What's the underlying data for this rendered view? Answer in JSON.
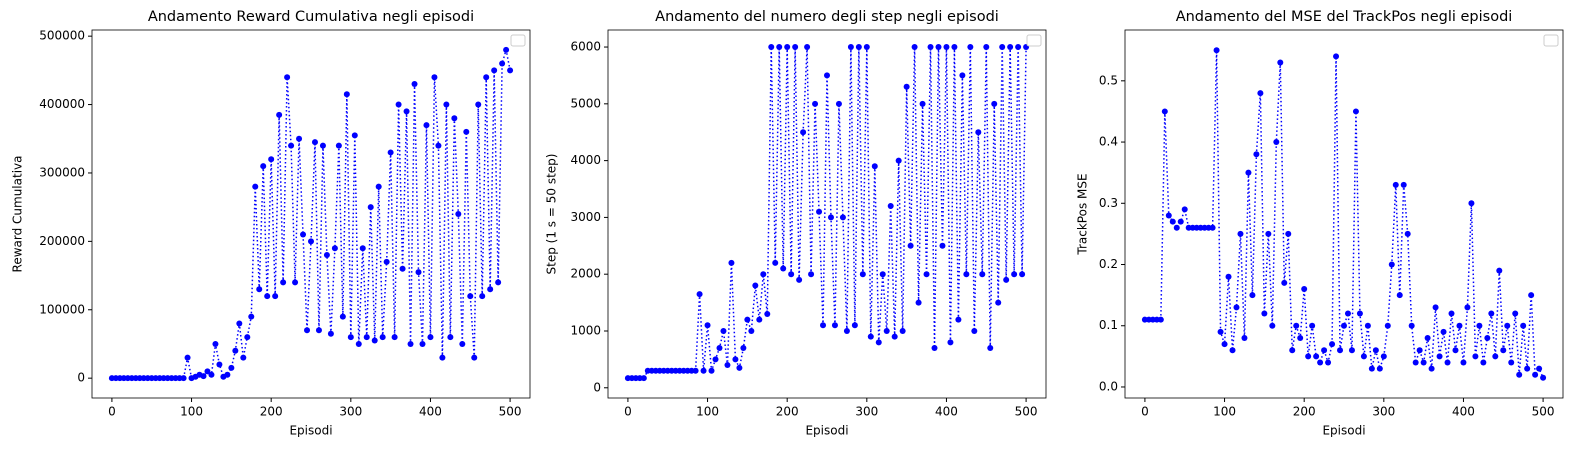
{
  "chart_data": [
    {
      "type": "line",
      "title": "Andamento Reward Cumulativa negli episodi",
      "x_label": "Episodi",
      "y_label": "Reward Cumulativa",
      "x": [
        0,
        5,
        10,
        15,
        20,
        25,
        30,
        35,
        40,
        45,
        50,
        55,
        60,
        65,
        70,
        75,
        80,
        85,
        90,
        95,
        100,
        105,
        110,
        115,
        120,
        125,
        130,
        135,
        140,
        145,
        150,
        155,
        160,
        165,
        170,
        175,
        180,
        185,
        190,
        195,
        200,
        205,
        210,
        215,
        220,
        225,
        230,
        235,
        240,
        245,
        250,
        255,
        260,
        265,
        270,
        275,
        280,
        285,
        290,
        295,
        300,
        305,
        310,
        315,
        320,
        325,
        330,
        335,
        340,
        345,
        350,
        355,
        360,
        365,
        370,
        375,
        380,
        385,
        390,
        395,
        400,
        405,
        410,
        415,
        420,
        425,
        430,
        435,
        440,
        445,
        450,
        455,
        460,
        465,
        470,
        475,
        480,
        485,
        490,
        495,
        500
      ],
      "series": [
        {
          "color": "#0000ff",
          "values": [
            0,
            0,
            0,
            0,
            0,
            0,
            0,
            0,
            0,
            0,
            0,
            0,
            0,
            0,
            0,
            0,
            0,
            0,
            0,
            30000,
            0,
            2000,
            5000,
            3000,
            10000,
            5000,
            50000,
            20000,
            2000,
            5000,
            15000,
            40000,
            80000,
            30000,
            60000,
            90000,
            280000,
            130000,
            310000,
            120000,
            320000,
            120000,
            385000,
            140000,
            440000,
            340000,
            140000,
            350000,
            210000,
            70000,
            200000,
            345000,
            70000,
            340000,
            180000,
            65000,
            190000,
            340000,
            90000,
            415000,
            60000,
            355000,
            50000,
            190000,
            60000,
            250000,
            55000,
            280000,
            60000,
            170000,
            330000,
            60000,
            400000,
            160000,
            390000,
            50000,
            430000,
            155000,
            50000,
            370000,
            60000,
            440000,
            340000,
            30000,
            400000,
            60000,
            380000,
            240000,
            50000,
            360000,
            120000,
            30000,
            400000,
            120000,
            440000,
            130000,
            450000,
            140000,
            460000,
            480000,
            450000
          ]
        }
      ],
      "xlim": [
        -25,
        525
      ],
      "xticks": [
        0,
        100,
        200,
        300,
        400,
        500
      ],
      "ylim": [
        -29000,
        509000
      ],
      "yticks": [
        0,
        100000,
        200000,
        300000,
        400000,
        500000
      ]
    },
    {
      "type": "line",
      "title": "Andamento del numero degli step negli episodi",
      "x_label": "Episodi",
      "y_label": "Step (1 s = 50 step)",
      "x": [
        0,
        5,
        10,
        15,
        20,
        25,
        30,
        35,
        40,
        45,
        50,
        55,
        60,
        65,
        70,
        75,
        80,
        85,
        90,
        95,
        100,
        105,
        110,
        115,
        120,
        125,
        130,
        135,
        140,
        145,
        150,
        155,
        160,
        165,
        170,
        175,
        180,
        185,
        190,
        195,
        200,
        205,
        210,
        215,
        220,
        225,
        230,
        235,
        240,
        245,
        250,
        255,
        260,
        265,
        270,
        275,
        280,
        285,
        290,
        295,
        300,
        305,
        310,
        315,
        320,
        325,
        330,
        335,
        340,
        345,
        350,
        355,
        360,
        365,
        370,
        375,
        380,
        385,
        390,
        395,
        400,
        405,
        410,
        415,
        420,
        425,
        430,
        435,
        440,
        445,
        450,
        455,
        460,
        465,
        470,
        475,
        480,
        485,
        490,
        495,
        500
      ],
      "series": [
        {
          "color": "#0000ff",
          "values": [
            170,
            170,
            170,
            170,
            170,
            300,
            300,
            300,
            300,
            300,
            300,
            300,
            300,
            300,
            300,
            300,
            300,
            300,
            1650,
            300,
            1100,
            300,
            500,
            700,
            1000,
            400,
            2200,
            500,
            350,
            700,
            1200,
            1000,
            1800,
            1200,
            2000,
            1300,
            6000,
            2200,
            6000,
            2100,
            6000,
            2000,
            6000,
            1900,
            4500,
            6000,
            2000,
            5000,
            3100,
            1100,
            5500,
            3000,
            1100,
            5000,
            3000,
            1000,
            6000,
            1100,
            6000,
            2000,
            6000,
            900,
            3900,
            800,
            2000,
            1000,
            3200,
            900,
            4000,
            1000,
            5300,
            2500,
            6000,
            1500,
            5000,
            2000,
            6000,
            700,
            6000,
            2500,
            6000,
            800,
            6000,
            1200,
            5500,
            2000,
            6000,
            1000,
            4500,
            2000,
            6000,
            700,
            5000,
            1500,
            6000,
            1900,
            6000,
            2000,
            6000,
            2000,
            6000
          ]
        }
      ],
      "xlim": [
        -25,
        525
      ],
      "xticks": [
        0,
        100,
        200,
        300,
        400,
        500
      ],
      "ylim": [
        -180,
        6300
      ],
      "yticks": [
        0,
        1000,
        2000,
        3000,
        4000,
        5000,
        6000
      ]
    },
    {
      "type": "line",
      "title": "Andamento del MSE del TrackPos negli episodi",
      "x_label": "Episodi",
      "y_label": "TrackPos MSE",
      "x": [
        0,
        5,
        10,
        15,
        20,
        25,
        30,
        35,
        40,
        45,
        50,
        55,
        60,
        65,
        70,
        75,
        80,
        85,
        90,
        95,
        100,
        105,
        110,
        115,
        120,
        125,
        130,
        135,
        140,
        145,
        150,
        155,
        160,
        165,
        170,
        175,
        180,
        185,
        190,
        195,
        200,
        205,
        210,
        215,
        220,
        225,
        230,
        235,
        240,
        245,
        250,
        255,
        260,
        265,
        270,
        275,
        280,
        285,
        290,
        295,
        300,
        305,
        310,
        315,
        320,
        325,
        330,
        335,
        340,
        345,
        350,
        355,
        360,
        365,
        370,
        375,
        380,
        385,
        390,
        395,
        400,
        405,
        410,
        415,
        420,
        425,
        430,
        435,
        440,
        445,
        450,
        455,
        460,
        465,
        470,
        475,
        480,
        485,
        490,
        495,
        500
      ],
      "series": [
        {
          "color": "#0000ff",
          "values": [
            0.11,
            0.11,
            0.11,
            0.11,
            0.11,
            0.45,
            0.28,
            0.27,
            0.26,
            0.27,
            0.29,
            0.26,
            0.26,
            0.26,
            0.26,
            0.26,
            0.26,
            0.26,
            0.55,
            0.09,
            0.07,
            0.18,
            0.06,
            0.13,
            0.25,
            0.08,
            0.35,
            0.15,
            0.38,
            0.48,
            0.12,
            0.25,
            0.1,
            0.4,
            0.53,
            0.17,
            0.25,
            0.06,
            0.1,
            0.08,
            0.16,
            0.05,
            0.1,
            0.05,
            0.04,
            0.06,
            0.04,
            0.07,
            0.54,
            0.06,
            0.1,
            0.12,
            0.06,
            0.45,
            0.12,
            0.05,
            0.1,
            0.03,
            0.06,
            0.03,
            0.05,
            0.1,
            0.2,
            0.33,
            0.15,
            0.33,
            0.25,
            0.1,
            0.04,
            0.06,
            0.04,
            0.08,
            0.03,
            0.13,
            0.05,
            0.09,
            0.04,
            0.12,
            0.06,
            0.1,
            0.04,
            0.13,
            0.3,
            0.05,
            0.1,
            0.04,
            0.08,
            0.12,
            0.05,
            0.19,
            0.06,
            0.1,
            0.04,
            0.12,
            0.02,
            0.1,
            0.03,
            0.15,
            0.02,
            0.03,
            0.015
          ]
        }
      ],
      "xlim": [
        -25,
        525
      ],
      "xticks": [
        0,
        100,
        200,
        300,
        400,
        500
      ],
      "ylim": [
        -0.018,
        0.583
      ],
      "yticks": [
        {
          "value": 0,
          "label": "0.0"
        },
        0.1,
        0.2,
        0.3,
        0.4,
        0.5
      ]
    }
  ]
}
